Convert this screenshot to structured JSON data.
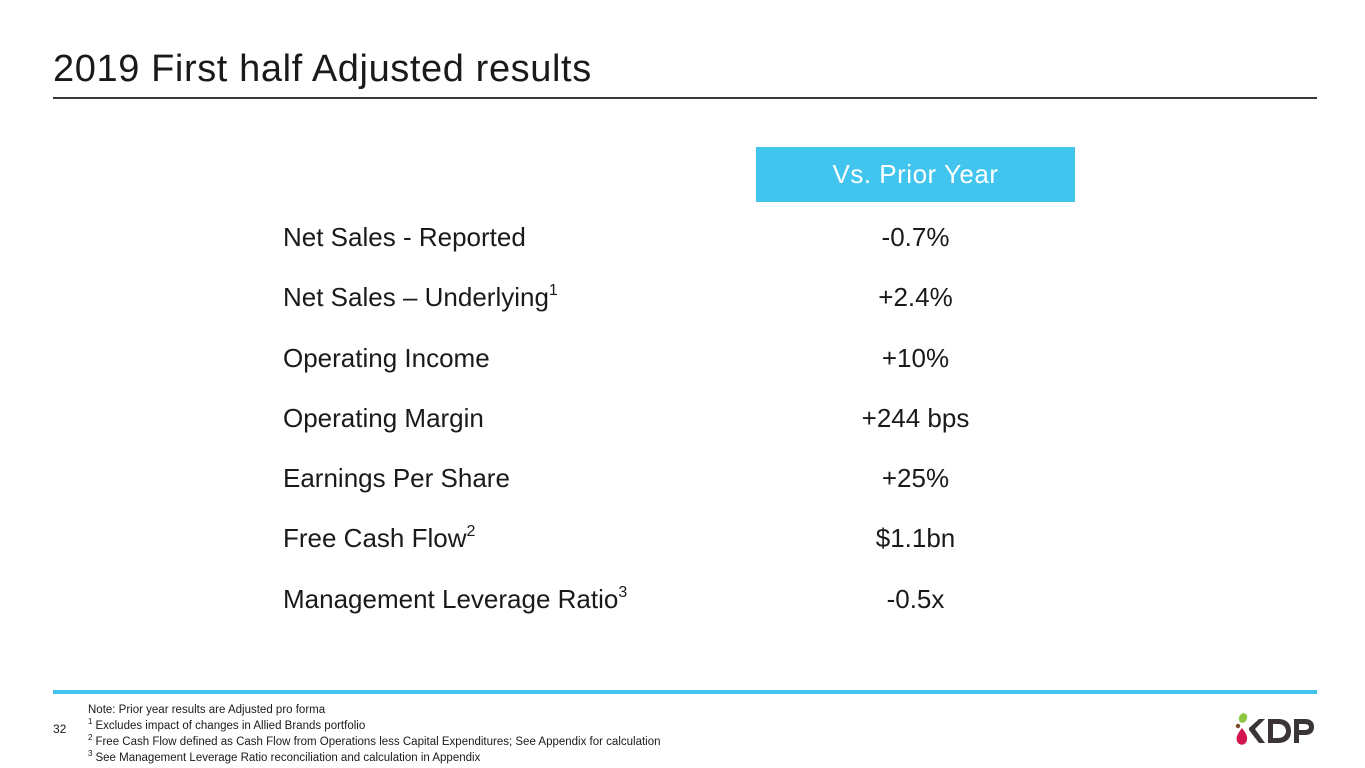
{
  "slide": {
    "title": "2019 First half Adjusted results",
    "column_header": "Vs. Prior Year",
    "rows": [
      {
        "label": "Net Sales - Reported",
        "footnote": "",
        "value": "-0.7%"
      },
      {
        "label": "Net Sales – Underlying",
        "footnote": "1",
        "value": "+2.4%"
      },
      {
        "label": "Operating Income",
        "footnote": "",
        "value": "+10%"
      },
      {
        "label": "Operating Margin",
        "footnote": "",
        "value": "+244 bps"
      },
      {
        "label": "Earnings Per Share",
        "footnote": "",
        "value": "+25%"
      },
      {
        "label": "Free Cash Flow",
        "footnote": "2",
        "value": "$1.1bn"
      },
      {
        "label": "Management Leverage Ratio",
        "footnote": "3",
        "value": "-0.5x"
      }
    ]
  },
  "footer": {
    "page_number": "32",
    "note": "Note: Prior year results are Adjusted pro forma",
    "footnotes": [
      {
        "mark": "1",
        "text": "Excludes impact of changes in Allied Brands portfolio"
      },
      {
        "mark": "2",
        "text": "Free Cash Flow defined as Cash Flow from Operations less Capital Expenditures; See Appendix for calculation"
      },
      {
        "mark": "3",
        "text": "See Management Leverage Ratio reconciliation and calculation in Appendix"
      }
    ],
    "logo_text": "KDP"
  },
  "colors": {
    "accent": "#41c4ee",
    "text": "#1a1a1a",
    "logo_dark": "#3b3538",
    "logo_green": "#8cc63f",
    "logo_red": "#d2154f",
    "logo_brown": "#7a4a2a"
  }
}
